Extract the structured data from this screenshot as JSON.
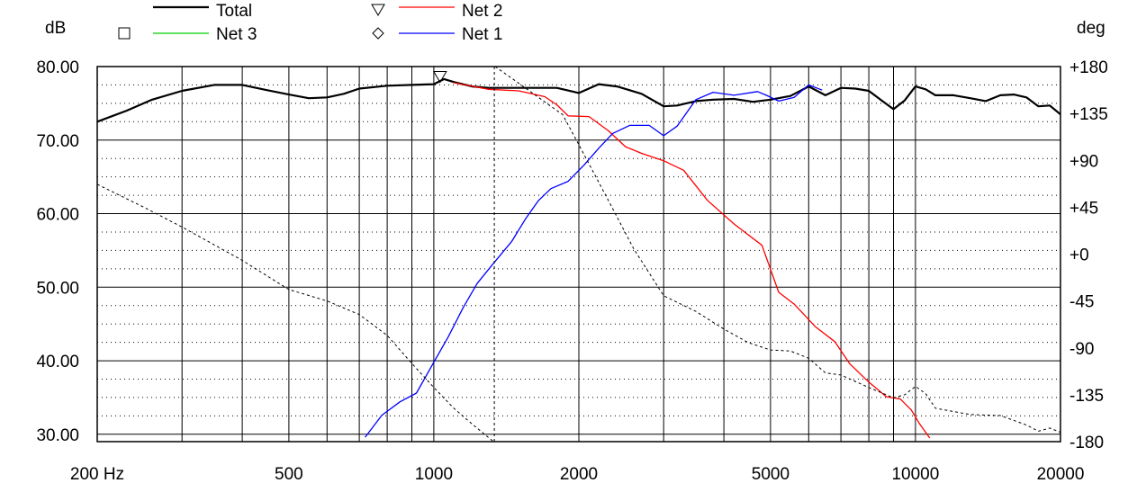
{
  "chart_data": {
    "type": "line",
    "title": "",
    "x": {
      "scale": "log",
      "range": [
        200,
        20000
      ],
      "ticks": [
        200,
        500,
        1000,
        2000,
        5000,
        10000,
        20000
      ],
      "tick_labels": [
        "200 Hz",
        "500",
        "1000",
        "2000",
        "5000",
        "10000",
        "20000"
      ],
      "gridlines": [
        200,
        300,
        400,
        500,
        600,
        700,
        800,
        900,
        1000,
        2000,
        3000,
        4000,
        5000,
        6000,
        7000,
        8000,
        9000,
        10000,
        20000
      ]
    },
    "y_left": {
      "unit": "dB",
      "range": [
        29,
        80
      ],
      "ticks": [
        30,
        40,
        50,
        60,
        70,
        80
      ],
      "tick_labels": [
        "30.00",
        "40.00",
        "50.00",
        "60.00",
        "70.00",
        "80.00"
      ]
    },
    "y_right": {
      "unit": "deg",
      "range": [
        -180,
        180
      ],
      "ticks": [
        180,
        135,
        90,
        45,
        0,
        -45,
        -90,
        -135,
        -180
      ],
      "tick_labels": [
        "+180",
        "+135",
        "+90",
        "+45",
        "+0",
        "-45",
        "-90",
        "-135",
        "-180"
      ]
    },
    "grid": true,
    "legend": {
      "placement": "top-left",
      "items": [
        {
          "name": "Total",
          "color": "#000000",
          "marker": "none"
        },
        {
          "name": "Net 2",
          "color": "#ff0000",
          "marker": "triangle-down"
        },
        {
          "name": "Net 3",
          "color": "#00cc00",
          "marker": "square"
        },
        {
          "name": "Net 1",
          "color": "#0000ff",
          "marker": "diamond"
        }
      ]
    },
    "series": [
      {
        "name": "Total",
        "axis": "left",
        "color": "#000000",
        "style": "solid",
        "width": 2.2,
        "points": [
          [
            200,
            72.5
          ],
          [
            230,
            74
          ],
          [
            260,
            75.5
          ],
          [
            300,
            76.7
          ],
          [
            350,
            77.5
          ],
          [
            400,
            77.5
          ],
          [
            450,
            76.8
          ],
          [
            500,
            76.2
          ],
          [
            550,
            75.7
          ],
          [
            600,
            75.8
          ],
          [
            650,
            76.3
          ],
          [
            700,
            77
          ],
          [
            800,
            77.4
          ],
          [
            900,
            77.5
          ],
          [
            1000,
            77.6
          ],
          [
            1050,
            78.3
          ],
          [
            1100,
            77.9
          ],
          [
            1200,
            77.3
          ],
          [
            1300,
            77.1
          ],
          [
            1500,
            77.1
          ],
          [
            1800,
            77.1
          ],
          [
            2000,
            76.4
          ],
          [
            2200,
            77.6
          ],
          [
            2400,
            77.3
          ],
          [
            2700,
            76.3
          ],
          [
            3000,
            74.6
          ],
          [
            3200,
            74.7
          ],
          [
            3500,
            75.3
          ],
          [
            3800,
            75.5
          ],
          [
            4200,
            75.6
          ],
          [
            4600,
            75.2
          ],
          [
            5000,
            75.5
          ],
          [
            5500,
            76
          ],
          [
            6000,
            77.3
          ],
          [
            6500,
            76.1
          ],
          [
            7000,
            77.1
          ],
          [
            7500,
            77
          ],
          [
            8000,
            76.7
          ],
          [
            8500,
            75.4
          ],
          [
            9000,
            74.2
          ],
          [
            9500,
            75.4
          ],
          [
            10000,
            77.3
          ],
          [
            10500,
            76.9
          ],
          [
            11000,
            76.1
          ],
          [
            12000,
            76.1
          ],
          [
            13000,
            75.7
          ],
          [
            14000,
            75.3
          ],
          [
            15000,
            76.1
          ],
          [
            16000,
            76.2
          ],
          [
            17000,
            75.8
          ],
          [
            18000,
            74.6
          ],
          [
            19000,
            74.7
          ],
          [
            20000,
            73.5
          ]
        ]
      },
      {
        "name": "Net 2",
        "axis": "left",
        "color": "#ff0000",
        "style": "solid",
        "width": 1.3,
        "points": [
          [
            1100,
            77.8
          ],
          [
            1300,
            76.9
          ],
          [
            1500,
            76.7
          ],
          [
            1700,
            75.9
          ],
          [
            1800,
            74.8
          ],
          [
            1900,
            73.3
          ],
          [
            2100,
            73.2
          ],
          [
            2300,
            71.3
          ],
          [
            2500,
            69.1
          ],
          [
            2700,
            68.2
          ],
          [
            3000,
            67.2
          ],
          [
            3300,
            65.9
          ],
          [
            3700,
            61.8
          ],
          [
            4200,
            58.6
          ],
          [
            4800,
            55.7
          ],
          [
            5200,
            49.3
          ],
          [
            5600,
            47.7
          ],
          [
            6200,
            44.6
          ],
          [
            6800,
            42.6
          ],
          [
            7300,
            39.6
          ],
          [
            8000,
            37.1
          ],
          [
            8700,
            35.1
          ],
          [
            9300,
            34.8
          ],
          [
            9800,
            33.3
          ],
          [
            10200,
            31.4
          ],
          [
            10700,
            29.5
          ]
        ]
      },
      {
        "name": "Net 1",
        "axis": "left",
        "color": "#0000ff",
        "style": "solid",
        "width": 1.3,
        "points": [
          [
            720,
            29.6
          ],
          [
            780,
            32.6
          ],
          [
            850,
            34.4
          ],
          [
            920,
            35.6
          ],
          [
            1000,
            39.8
          ],
          [
            1070,
            43.2
          ],
          [
            1150,
            47.2
          ],
          [
            1230,
            50.5
          ],
          [
            1320,
            53
          ],
          [
            1450,
            56.2
          ],
          [
            1550,
            59.3
          ],
          [
            1650,
            61.8
          ],
          [
            1750,
            63.4
          ],
          [
            1900,
            64.4
          ],
          [
            2050,
            66.6
          ],
          [
            2200,
            68.9
          ],
          [
            2350,
            70.9
          ],
          [
            2550,
            72
          ],
          [
            2800,
            72
          ],
          [
            3000,
            70.6
          ],
          [
            3200,
            71.9
          ],
          [
            3500,
            75.5
          ],
          [
            3800,
            76.5
          ],
          [
            4200,
            76.1
          ],
          [
            4700,
            76.6
          ],
          [
            4900,
            76.1
          ],
          [
            5200,
            75.3
          ],
          [
            5600,
            75.8
          ],
          [
            6000,
            77.5
          ],
          [
            6400,
            76.8
          ]
        ]
      },
      {
        "name": "Net 2 phase",
        "axis": "right",
        "color": "#000000",
        "style": "dashed",
        "width": 1,
        "points": [
          [
            200,
            67
          ],
          [
            250,
            45
          ],
          [
            300,
            26
          ],
          [
            400,
            -6
          ],
          [
            500,
            -34
          ],
          [
            600,
            -45
          ],
          [
            700,
            -58
          ],
          [
            800,
            -78
          ],
          [
            900,
            -105
          ],
          [
            1000,
            -128
          ],
          [
            1100,
            -148
          ],
          [
            1200,
            -163
          ],
          [
            1330,
            -180
          ],
          [
            1340,
            180
          ],
          [
            1500,
            164
          ],
          [
            1700,
            146
          ],
          [
            1850,
            134
          ],
          [
            2000,
            105
          ],
          [
            2300,
            52
          ],
          [
            2600,
            5
          ],
          [
            3000,
            -40
          ],
          [
            3500,
            -55
          ],
          [
            4000,
            -72
          ],
          [
            4500,
            -85
          ],
          [
            5000,
            -92
          ],
          [
            5500,
            -93
          ],
          [
            6000,
            -100
          ],
          [
            6500,
            -114
          ],
          [
            7000,
            -116
          ],
          [
            8000,
            -128
          ],
          [
            9000,
            -138
          ],
          [
            9500,
            -135
          ],
          [
            10000,
            -127
          ],
          [
            10500,
            -134
          ],
          [
            11000,
            -148
          ],
          [
            13000,
            -154
          ],
          [
            15000,
            -155
          ],
          [
            17000,
            -164
          ],
          [
            18000,
            -170
          ],
          [
            19000,
            -167
          ],
          [
            20000,
            -171
          ]
        ]
      }
    ]
  }
}
